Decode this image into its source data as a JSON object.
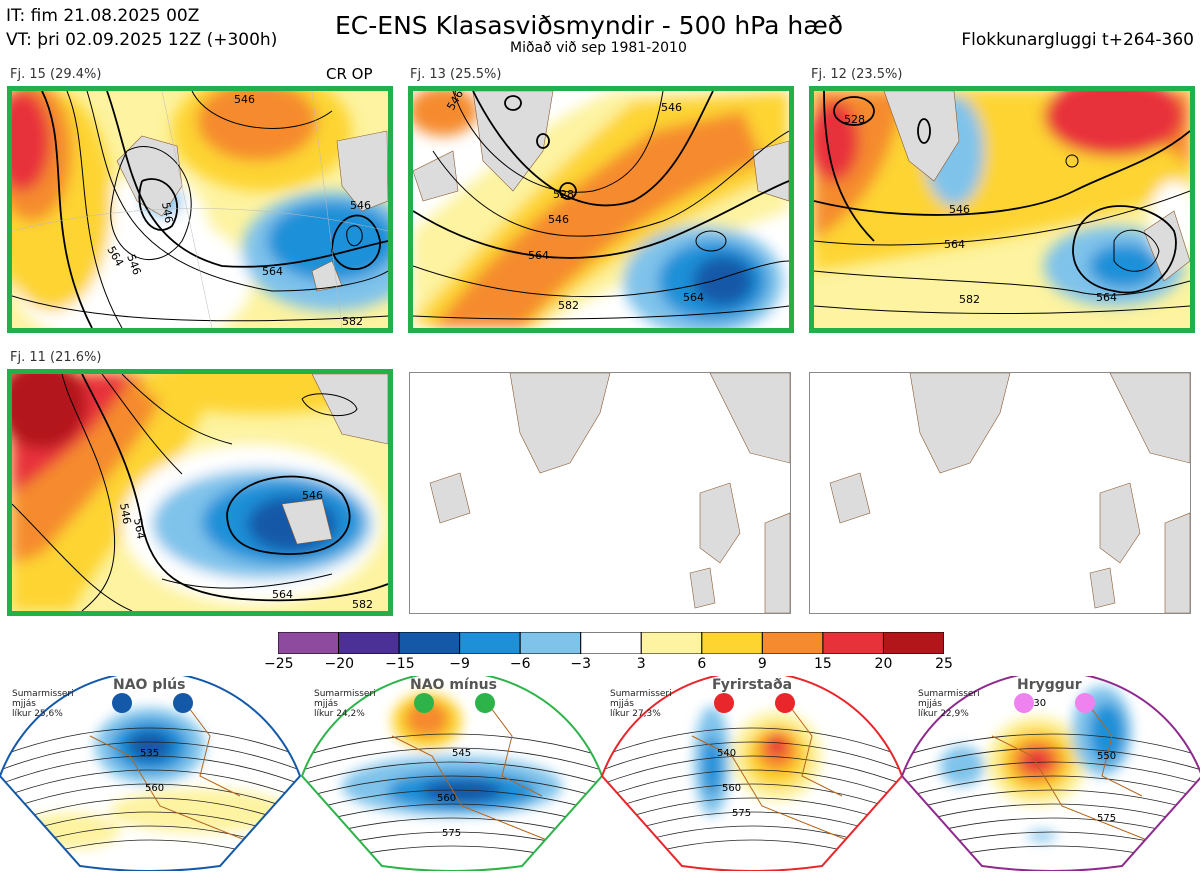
{
  "header": {
    "it_line": "IT: fim 21.08.2025 00Z",
    "vt_line": "VT: þri 02.09.2025 12Z  (+300h)",
    "title": "EC-ENS Klasasviðsmyndir - 500 hPa hæð",
    "subtitle": "Miðað við sep 1981-2010",
    "window": "Flokkunargluggi t+264-360"
  },
  "panels": [
    {
      "label": "Fj. 15 (29.4%)",
      "extra": "CR OP",
      "contours": [
        "564",
        "564",
        "546",
        "546",
        "546",
        "582",
        "546"
      ]
    },
    {
      "label": "Fj. 13 (25.5%)",
      "extra": "",
      "contours": [
        "546",
        "546",
        "528",
        "546",
        "564",
        "582",
        "564"
      ]
    },
    {
      "label": "Fj. 12 (23.5%)",
      "extra": "",
      "contours": [
        "528",
        "546",
        "564",
        "582",
        "564"
      ]
    },
    {
      "label": "Fj. 11 (21.6%)",
      "extra": "",
      "contours": [
        "546",
        "564",
        "546",
        "564",
        "582"
      ]
    }
  ],
  "regimes": [
    {
      "name": "NAO plús",
      "season": "Sumarmisseri",
      "status": "mjjás",
      "prob": "líkur 25,6%",
      "dot_color": "#1458a8",
      "frame_color": "#1458a8",
      "contours": [
        "535",
        "560"
      ]
    },
    {
      "name": "NAO mínus",
      "season": "Sumarmisseri",
      "status": "mjjás",
      "prob": "líkur 24,2%",
      "dot_color": "#2db34a",
      "frame_color": "#2db34a",
      "contours": [
        "545",
        "560",
        "575"
      ]
    },
    {
      "name": "Fyrirstaða",
      "season": "Sumarmisseri",
      "status": "mjjás",
      "prob": "líkur 27,3%",
      "dot_color": "#e8262b",
      "frame_color": "#e8262b",
      "contours": [
        "540",
        "560",
        "575"
      ]
    },
    {
      "name": "Hryggur",
      "season": "Sumarmisseri",
      "status": "mjjás",
      "prob": "líkur 22,9%",
      "dot_color": "#ee82ee",
      "frame_color": "#8e2a8e",
      "contours": [
        "530",
        "550",
        "575"
      ]
    }
  ],
  "colorbar": {
    "ticks": [
      "−25",
      "−20",
      "−15",
      "−9",
      "−6",
      "−3",
      "3",
      "6",
      "9",
      "15",
      "20",
      "25"
    ],
    "colors": [
      "#8e4a9e",
      "#4b3196",
      "#1458a8",
      "#1e90d8",
      "#7fc3eb",
      "#ffffff",
      "#fdf3a0",
      "#fdd430",
      "#f58b2e",
      "#e8323a",
      "#b3161a"
    ]
  },
  "chart_data": {
    "type": "heatmap",
    "title": "EC-ENS Klasasviðsmyndir - 500 hPa hæð",
    "colorbar_levels": [
      -25,
      -20,
      -15,
      -9,
      -6,
      -3,
      3,
      6,
      9,
      15,
      20,
      25
    ],
    "clusters": [
      {
        "name": "Fj. 15",
        "percent": 29.4
      },
      {
        "name": "Fj. 13",
        "percent": 25.5
      },
      {
        "name": "Fj. 12",
        "percent": 23.5
      },
      {
        "name": "Fj. 11",
        "percent": 21.6
      }
    ],
    "regimes": [
      {
        "name": "NAO plús",
        "probability": 25.6
      },
      {
        "name": "NAO mínus",
        "probability": 24.2
      },
      {
        "name": "Fyrirstaða",
        "probability": 27.3
      },
      {
        "name": "Hryggur",
        "probability": 22.9
      }
    ]
  }
}
